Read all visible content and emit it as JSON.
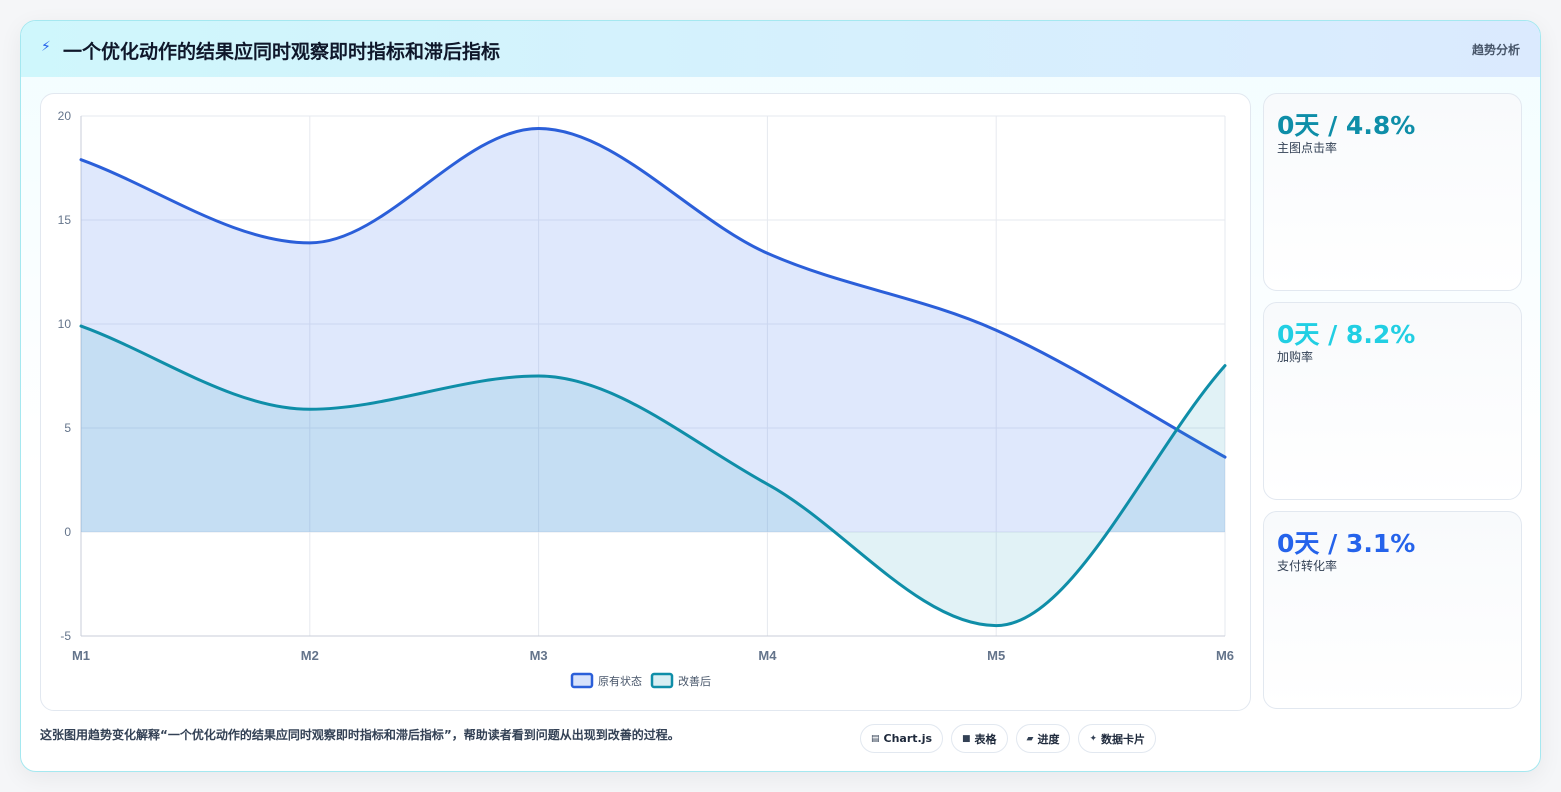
{
  "header": {
    "title": "一个优化动作的结果应同时观察即时指标和滞后指标",
    "tag": "趋势分析"
  },
  "colors": {
    "series_1": "#2b5fd9",
    "series_2": "#0f8ea8",
    "kpi_1": "#0e8ea8",
    "kpi_2": "#22cfe3",
    "kpi_3": "#2563eb"
  },
  "chart_data": {
    "type": "line",
    "area": true,
    "x": [
      "M1",
      "M2",
      "M3",
      "M4",
      "M5",
      "M6"
    ],
    "series": [
      {
        "name": "原有状态",
        "values": [
          17.9,
          13.9,
          19.4,
          13.4,
          9.7,
          3.6
        ]
      },
      {
        "name": "改善后",
        "values": [
          9.9,
          5.9,
          7.5,
          2.3,
          -4.5,
          8.0
        ]
      }
    ],
    "ylim": [
      -5,
      20
    ],
    "yticks": [
      20,
      15,
      10,
      5,
      0,
      -5
    ],
    "grid": true,
    "legend": "bottom"
  },
  "kpis": [
    {
      "value": "0天 / 4.8%",
      "label": "主图点击率"
    },
    {
      "value": "0天 / 8.2%",
      "label": "加购率"
    },
    {
      "value": "0天 / 3.1%",
      "label": "支付转化率"
    }
  ],
  "caption": "这张图用趋势变化解释“一个优化动作的结果应同时观察即时指标和滞后指标”，帮助读者看到问题从出现到改善的过程。",
  "pills": [
    {
      "icon": "chart-icon",
      "glyph": "▤",
      "label": "Chart.js"
    },
    {
      "icon": "table-icon",
      "glyph": "■",
      "label": "表格"
    },
    {
      "icon": "progress-icon",
      "glyph": "▰",
      "label": "进度"
    },
    {
      "icon": "sparkle-icon",
      "glyph": "✦",
      "label": "数据卡片"
    }
  ]
}
